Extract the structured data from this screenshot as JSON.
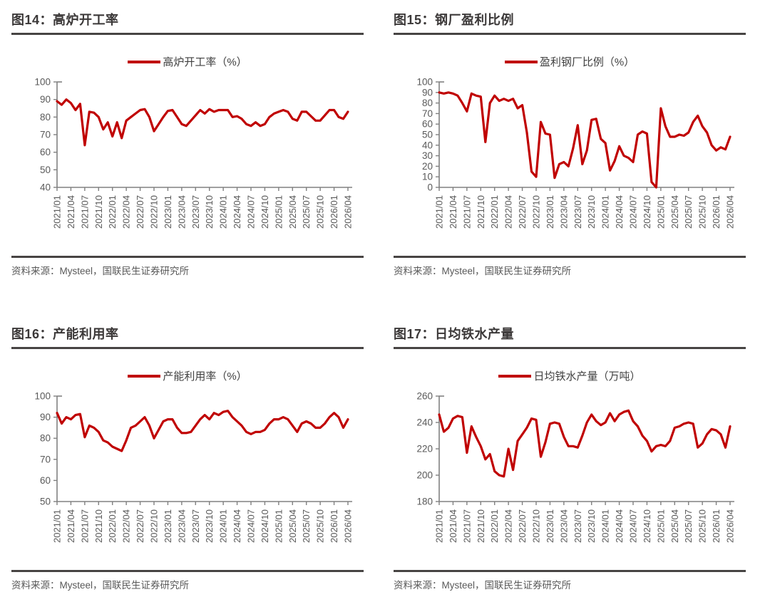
{
  "colors": {
    "line": "#c00000",
    "title_text": "#3b3838",
    "rule": "#474443",
    "axis": "#808080",
    "tick_label": "#595959",
    "source_text": "#595959"
  },
  "chart_data": [
    {
      "type": "line",
      "title": "图14：高炉开工率",
      "legend": [
        "高炉开工率（%）"
      ],
      "source": "资料来源：Mysteel，国联民生证券研究所",
      "line_color": "#c00000",
      "x_start": "2021/01",
      "x_end": "2026/04",
      "x_frequency": "monthly",
      "x_tick_labels": [
        "2021/01",
        "2021/04",
        "2021/07",
        "2021/10",
        "2022/01",
        "2022/04",
        "2022/07",
        "2022/10",
        "2023/01",
        "2023/04",
        "2023/07",
        "2023/10",
        "2024/01",
        "2024/04",
        "2024/07",
        "2024/10",
        "2025/01",
        "2025/04",
        "2025/07",
        "2025/10",
        "2026/01",
        "2026/04"
      ],
      "ylim": [
        40,
        100
      ],
      "y_ticks": [
        40,
        50,
        60,
        70,
        80,
        90,
        100
      ],
      "values": [
        89,
        87,
        90,
        88,
        84,
        87.5,
        64,
        83,
        82.5,
        80,
        73,
        77,
        69,
        77,
        68,
        78,
        80,
        82,
        84,
        84.5,
        80,
        72,
        76,
        80,
        83.5,
        84,
        80,
        76,
        75,
        78,
        81,
        84,
        82,
        84.5,
        83,
        84,
        84,
        84,
        80,
        80.5,
        79,
        76,
        75,
        77,
        75,
        76,
        80,
        82,
        83,
        84,
        83,
        79,
        78,
        83,
        83,
        80.5,
        78,
        78,
        81,
        84,
        84,
        80,
        79,
        83
      ]
    },
    {
      "type": "line",
      "title": "图15：钢厂盈利比例",
      "legend": [
        "盈利钢厂比例（%）"
      ],
      "source": "资料来源：Mysteel，国联民生证券研究所",
      "line_color": "#c00000",
      "x_start": "2021/01",
      "x_end": "2026/04",
      "x_frequency": "monthly",
      "x_tick_labels": [
        "2021/01",
        "2021/04",
        "2021/07",
        "2021/10",
        "2022/01",
        "2022/04",
        "2022/07",
        "2022/10",
        "2023/01",
        "2023/04",
        "2023/07",
        "2023/10",
        "2024/01",
        "2024/04",
        "2024/07",
        "2024/10",
        "2025/01",
        "2025/04",
        "2025/07",
        "2025/10",
        "2026/01",
        "2026/04"
      ],
      "ylim": [
        0,
        100
      ],
      "y_ticks": [
        0,
        10,
        20,
        30,
        40,
        50,
        60,
        70,
        80,
        90,
        100
      ],
      "values": [
        90,
        89,
        90,
        89,
        87,
        80,
        72,
        89,
        87,
        86,
        43,
        80,
        87,
        82,
        84,
        82,
        84,
        75,
        78,
        52,
        15,
        10,
        62,
        51,
        50,
        9,
        22,
        24,
        20,
        37,
        59,
        22,
        35,
        64,
        65,
        46,
        42,
        16,
        25,
        39,
        30,
        28,
        24,
        50,
        53,
        51,
        5,
        0,
        75,
        58,
        48,
        48,
        50,
        49,
        52,
        62,
        68,
        58,
        52,
        40,
        35,
        38,
        36,
        48
      ]
    },
    {
      "type": "line",
      "title": "图16：产能利用率",
      "legend": [
        "产能利用率（%）"
      ],
      "source": "资料来源：Mysteel，国联民生证券研究所",
      "line_color": "#c00000",
      "x_start": "2021/01",
      "x_end": "2026/04",
      "x_frequency": "monthly",
      "x_tick_labels": [
        "2021/01",
        "2021/04",
        "2021/07",
        "2021/10",
        "2022/01",
        "2022/04",
        "2022/07",
        "2022/10",
        "2023/01",
        "2023/04",
        "2023/07",
        "2023/10",
        "2024/01",
        "2024/04",
        "2024/07",
        "2024/10",
        "2025/01",
        "2025/04",
        "2025/07",
        "2025/10",
        "2026/01",
        "2026/04"
      ],
      "ylim": [
        50,
        100
      ],
      "y_ticks": [
        50,
        60,
        70,
        80,
        90,
        100
      ],
      "values": [
        92,
        87,
        90,
        89,
        91,
        91.5,
        80.5,
        86,
        85,
        83,
        79,
        78,
        76,
        75,
        74,
        79,
        85,
        86,
        88,
        90,
        86,
        80,
        84,
        88,
        89,
        89,
        85,
        82.5,
        82.5,
        83,
        86,
        89,
        91,
        89,
        92,
        91,
        92.5,
        93,
        90,
        88,
        86,
        83,
        82,
        83,
        83,
        84,
        87,
        89,
        89,
        90,
        89,
        86,
        83,
        87,
        88,
        87,
        85,
        85,
        87,
        90,
        92,
        90,
        85,
        89
      ]
    },
    {
      "type": "line",
      "title": "图17：日均铁水产量",
      "legend": [
        "日均铁水产量（万吨）"
      ],
      "source": "资料来源：Mysteel，国联民生证券研究所",
      "line_color": "#c00000",
      "x_start": "2021/01",
      "x_end": "2026/04",
      "x_frequency": "monthly",
      "x_tick_labels": [
        "2021/01",
        "2021/04",
        "2021/07",
        "2021/10",
        "2022/01",
        "2022/04",
        "2022/07",
        "2022/10",
        "2023/01",
        "2023/04",
        "2023/07",
        "2023/10",
        "2024/01",
        "2024/04",
        "2024/07",
        "2024/10",
        "2025/01",
        "2025/04",
        "2025/07",
        "2025/10",
        "2026/01",
        "2026/04"
      ],
      "ylim": [
        180,
        260
      ],
      "y_ticks": [
        180,
        200,
        220,
        240,
        260
      ],
      "values": [
        246,
        233,
        236,
        243,
        245,
        244,
        217,
        237,
        229,
        222,
        212,
        216,
        203,
        200,
        199,
        220,
        204,
        226,
        231,
        236,
        243,
        242,
        214,
        225,
        239,
        240,
        239,
        229,
        222,
        222,
        221,
        230,
        240,
        246,
        241,
        238,
        240,
        247,
        241,
        246,
        248,
        249,
        241,
        237,
        230,
        226,
        218,
        222,
        223,
        222,
        226,
        236,
        237,
        239,
        240,
        239,
        221,
        224,
        231,
        235,
        234,
        231,
        221,
        237
      ]
    }
  ]
}
